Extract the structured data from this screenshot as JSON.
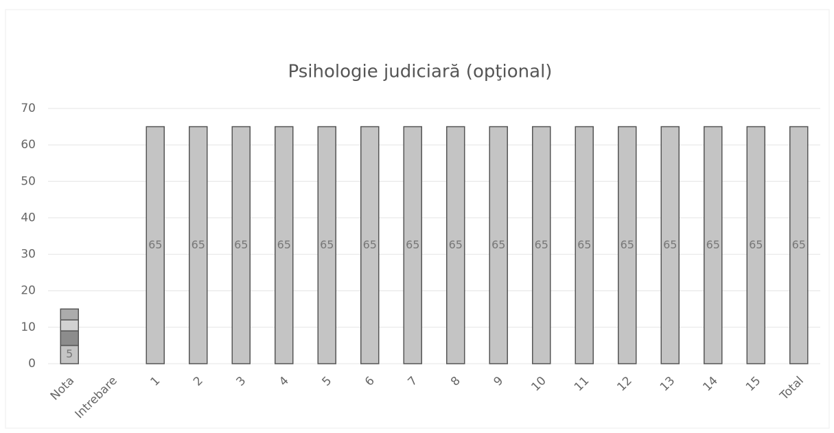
{
  "chart_data": {
    "type": "stacked_bar",
    "title": "Psihologie judiciară (opţional)",
    "categories": [
      "Nota",
      "Intrebare",
      "1",
      "2",
      "3",
      "4",
      "5",
      "6",
      "7",
      "8",
      "9",
      "10",
      "11",
      "12",
      "13",
      "14",
      "15",
      "Total"
    ],
    "series": [
      {
        "color": "#c4c4c4",
        "show_labels": true,
        "values": [
          5,
          null,
          65,
          65,
          65,
          65,
          65,
          65,
          65,
          65,
          65,
          65,
          65,
          65,
          65,
          65,
          65,
          65
        ]
      },
      {
        "color": "#8c8c8c",
        "values": [
          4,
          null,
          null,
          null,
          null,
          null,
          null,
          null,
          null,
          null,
          null,
          null,
          null,
          null,
          null,
          null,
          null,
          null
        ]
      },
      {
        "color": "#d2d2d2",
        "values": [
          3,
          null,
          null,
          null,
          null,
          null,
          null,
          null,
          null,
          null,
          null,
          null,
          null,
          null,
          null,
          null,
          null,
          null
        ]
      },
      {
        "color": "#acacac",
        "values": [
          3,
          null,
          null,
          null,
          null,
          null,
          null,
          null,
          null,
          null,
          null,
          null,
          null,
          null,
          null,
          null,
          null,
          null
        ]
      }
    ],
    "ylim": [
      0,
      70
    ],
    "yticks": [
      0,
      10,
      20,
      30,
      40,
      50,
      60,
      70
    ],
    "grid": true
  }
}
